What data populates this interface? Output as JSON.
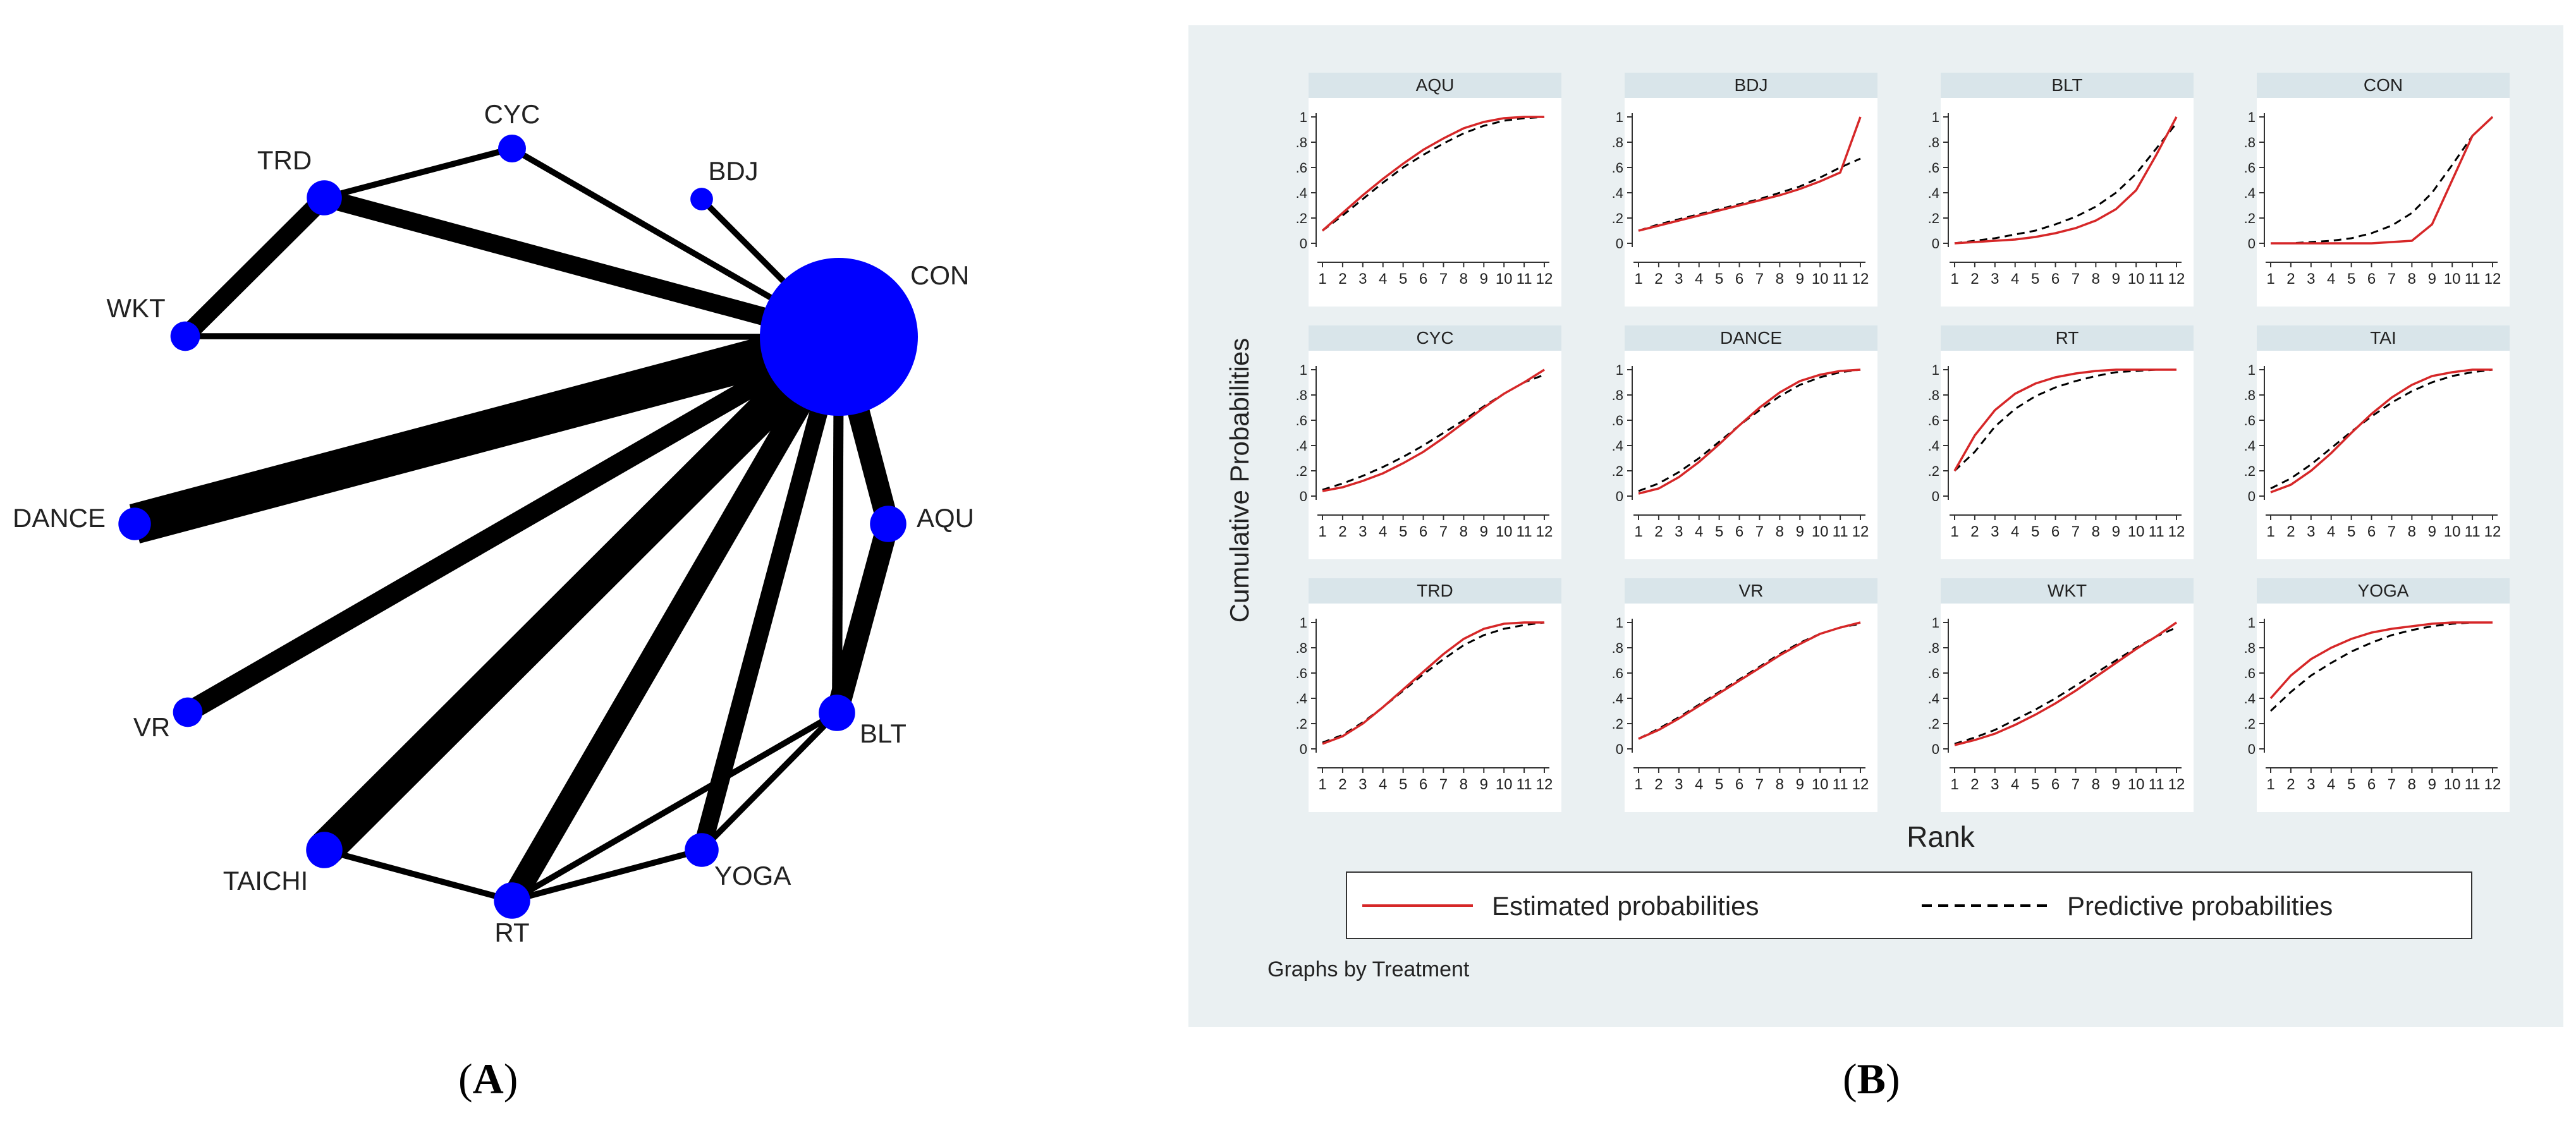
{
  "panel_labels": {
    "a": "A",
    "b": "B"
  },
  "chart_data": [
    {
      "type": "network",
      "panel": "A",
      "nodes": [
        {
          "id": "CON",
          "size": 10
        },
        {
          "id": "CYC",
          "size": 1
        },
        {
          "id": "TRD",
          "size": 2
        },
        {
          "id": "BDJ",
          "size": 0.5
        },
        {
          "id": "WKT",
          "size": 1.2
        },
        {
          "id": "DANCE",
          "size": 1.6
        },
        {
          "id": "AQU",
          "size": 2.2
        },
        {
          "id": "VR",
          "size": 1.2
        },
        {
          "id": "BLT",
          "size": 2.2
        },
        {
          "id": "TAICHI",
          "size": 2.2
        },
        {
          "id": "RT",
          "size": 2.2
        },
        {
          "id": "YOGA",
          "size": 1.8
        }
      ],
      "edges": [
        {
          "a": "CON",
          "b": "CYC",
          "w": 3
        },
        {
          "a": "CON",
          "b": "TRD",
          "w": 9
        },
        {
          "a": "CON",
          "b": "BDJ",
          "w": 3
        },
        {
          "a": "CON",
          "b": "WKT",
          "w": 3
        },
        {
          "a": "CON",
          "b": "DANCE",
          "w": 20
        },
        {
          "a": "CON",
          "b": "AQU",
          "w": 11
        },
        {
          "a": "CON",
          "b": "VR",
          "w": 10
        },
        {
          "a": "CON",
          "b": "TAICHI",
          "w": 18
        },
        {
          "a": "CON",
          "b": "RT",
          "w": 12
        },
        {
          "a": "CON",
          "b": "YOGA",
          "w": 9
        },
        {
          "a": "CON",
          "b": "BLT",
          "w": 5
        },
        {
          "a": "TRD",
          "b": "CYC",
          "w": 3
        },
        {
          "a": "TRD",
          "b": "WKT",
          "w": 9
        },
        {
          "a": "AQU",
          "b": "BLT",
          "w": 11
        },
        {
          "a": "BLT",
          "b": "YOGA",
          "w": 3
        },
        {
          "a": "BLT",
          "b": "RT",
          "w": 3
        },
        {
          "a": "RT",
          "b": "YOGA",
          "w": 3
        },
        {
          "a": "TAICHI",
          "b": "RT",
          "w": 3
        }
      ]
    },
    {
      "type": "line",
      "panel": "B",
      "ylabel": "Cumulative Probabilities",
      "xlabel": "Rank",
      "note": "Graphs by Treatment",
      "legend": {
        "estimated": "Estimated probabilities",
        "predictive": "Predictive probabilities"
      },
      "x": [
        1,
        2,
        3,
        4,
        5,
        6,
        7,
        8,
        9,
        10,
        11,
        12
      ],
      "xtick_labels": [
        "1",
        "2",
        "3",
        "4",
        "5",
        "6",
        "7",
        "8",
        "9",
        "10",
        "11",
        "12"
      ],
      "ylim": [
        0,
        1
      ],
      "ytick_labels": [
        "0",
        ".2",
        ".4",
        ".6",
        ".8",
        "1"
      ],
      "panels": [
        {
          "name": "AQU",
          "estimated": [
            0.1,
            0.24,
            0.38,
            0.51,
            0.63,
            0.74,
            0.83,
            0.91,
            0.96,
            0.99,
            1.0,
            1.0
          ],
          "predictive": [
            0.1,
            0.22,
            0.35,
            0.48,
            0.6,
            0.7,
            0.79,
            0.87,
            0.93,
            0.97,
            0.99,
            1.0
          ]
        },
        {
          "name": "BDJ",
          "estimated": [
            0.1,
            0.14,
            0.18,
            0.22,
            0.26,
            0.3,
            0.34,
            0.38,
            0.43,
            0.49,
            0.56,
            1.0
          ],
          "predictive": [
            0.1,
            0.15,
            0.19,
            0.23,
            0.27,
            0.31,
            0.35,
            0.4,
            0.45,
            0.52,
            0.6,
            0.67
          ]
        },
        {
          "name": "BLT",
          "estimated": [
            0.0,
            0.01,
            0.02,
            0.03,
            0.05,
            0.08,
            0.12,
            0.18,
            0.27,
            0.42,
            0.7,
            1.0
          ],
          "predictive": [
            0.0,
            0.02,
            0.04,
            0.07,
            0.1,
            0.15,
            0.21,
            0.29,
            0.4,
            0.55,
            0.75,
            0.95
          ]
        },
        {
          "name": "CON",
          "estimated": [
            0.0,
            0.0,
            0.0,
            0.0,
            0.0,
            0.0,
            0.01,
            0.02,
            0.15,
            0.5,
            0.85,
            1.0
          ],
          "predictive": [
            0.0,
            0.0,
            0.01,
            0.02,
            0.04,
            0.08,
            0.14,
            0.24,
            0.4,
            0.62,
            0.85,
            1.0
          ]
        },
        {
          "name": "CYC",
          "estimated": [
            0.04,
            0.07,
            0.12,
            0.18,
            0.26,
            0.35,
            0.46,
            0.58,
            0.7,
            0.81,
            0.9,
            1.0
          ],
          "predictive": [
            0.05,
            0.1,
            0.16,
            0.23,
            0.31,
            0.4,
            0.5,
            0.6,
            0.71,
            0.81,
            0.9,
            0.96
          ]
        },
        {
          "name": "DANCE",
          "estimated": [
            0.02,
            0.06,
            0.15,
            0.27,
            0.41,
            0.56,
            0.7,
            0.82,
            0.91,
            0.96,
            0.99,
            1.0
          ],
          "predictive": [
            0.04,
            0.1,
            0.19,
            0.3,
            0.43,
            0.56,
            0.68,
            0.79,
            0.88,
            0.94,
            0.98,
            1.0
          ]
        },
        {
          "name": "RT",
          "estimated": [
            0.2,
            0.48,
            0.68,
            0.81,
            0.89,
            0.94,
            0.97,
            0.99,
            1.0,
            1.0,
            1.0,
            1.0
          ],
          "predictive": [
            0.2,
            0.35,
            0.55,
            0.69,
            0.79,
            0.86,
            0.91,
            0.95,
            0.98,
            0.99,
            1.0,
            1.0
          ]
        },
        {
          "name": "TAI",
          "estimated": [
            0.03,
            0.09,
            0.2,
            0.34,
            0.5,
            0.65,
            0.78,
            0.88,
            0.95,
            0.98,
            1.0,
            1.0
          ],
          "predictive": [
            0.06,
            0.14,
            0.25,
            0.38,
            0.51,
            0.63,
            0.74,
            0.83,
            0.9,
            0.95,
            0.98,
            1.0
          ]
        },
        {
          "name": "TRD",
          "estimated": [
            0.04,
            0.1,
            0.2,
            0.33,
            0.47,
            0.61,
            0.75,
            0.87,
            0.95,
            0.99,
            1.0,
            1.0
          ],
          "predictive": [
            0.05,
            0.11,
            0.21,
            0.33,
            0.46,
            0.59,
            0.71,
            0.82,
            0.9,
            0.95,
            0.98,
            1.0
          ]
        },
        {
          "name": "VR",
          "estimated": [
            0.08,
            0.15,
            0.24,
            0.34,
            0.44,
            0.54,
            0.64,
            0.74,
            0.83,
            0.91,
            0.96,
            1.0
          ],
          "predictive": [
            0.08,
            0.16,
            0.25,
            0.35,
            0.45,
            0.55,
            0.65,
            0.75,
            0.84,
            0.91,
            0.96,
            0.99
          ]
        },
        {
          "name": "WKT",
          "estimated": [
            0.03,
            0.07,
            0.12,
            0.19,
            0.27,
            0.36,
            0.46,
            0.57,
            0.68,
            0.79,
            0.89,
            1.0
          ],
          "predictive": [
            0.04,
            0.09,
            0.15,
            0.23,
            0.31,
            0.4,
            0.5,
            0.6,
            0.7,
            0.8,
            0.89,
            0.96
          ]
        },
        {
          "name": "YOGA",
          "estimated": [
            0.4,
            0.58,
            0.71,
            0.8,
            0.87,
            0.92,
            0.95,
            0.97,
            0.99,
            1.0,
            1.0,
            1.0
          ],
          "predictive": [
            0.3,
            0.45,
            0.58,
            0.68,
            0.77,
            0.84,
            0.9,
            0.94,
            0.97,
            0.99,
            1.0,
            1.0
          ]
        }
      ],
      "colors": {
        "estimated": "#d62728",
        "predictive": "#000000",
        "node": "#0000ff",
        "panel_bg": "#eaf0f2",
        "header_bg": "#d9e5ea"
      }
    }
  ]
}
